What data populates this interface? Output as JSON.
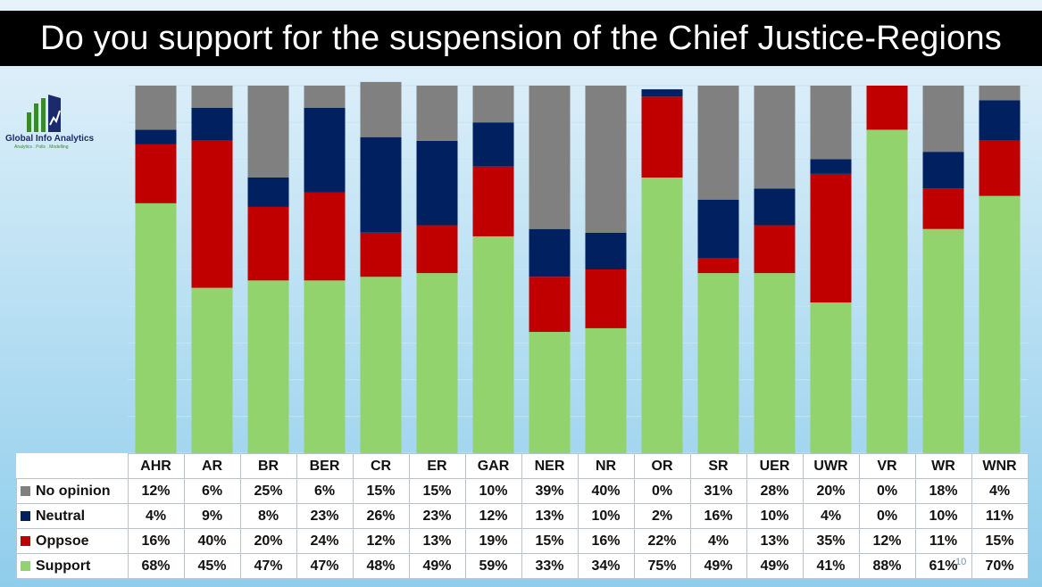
{
  "title": "Do you support for the suspension of the Chief Justice-Regions",
  "logo": {
    "name": "Global Info Analytics",
    "tagline": "Analytics . Polls . Modelling"
  },
  "page_number": "10",
  "colors": {
    "no_opinion": "#808080",
    "neutral": "#002060",
    "oppose": "#c00000",
    "support": "#92d36e"
  },
  "chart_data": {
    "type": "bar",
    "stacked": true,
    "percent": true,
    "title": "Do you support for the suspension of the Chief Justice-Regions",
    "categories": [
      "AHR",
      "AR",
      "BR",
      "BER",
      "CR",
      "ER",
      "GAR",
      "NER",
      "NR",
      "OR",
      "SR",
      "UER",
      "UWR",
      "VR",
      "WR",
      "WNR"
    ],
    "ylim": [
      0,
      100
    ],
    "series": [
      {
        "name": "Support",
        "color": "#92d36e",
        "values": [
          68,
          45,
          47,
          47,
          48,
          49,
          59,
          33,
          34,
          75,
          49,
          49,
          41,
          88,
          61,
          70
        ]
      },
      {
        "name": "Oppsoe",
        "color": "#c00000",
        "values": [
          16,
          40,
          20,
          24,
          12,
          13,
          19,
          15,
          16,
          22,
          4,
          13,
          35,
          12,
          11,
          15
        ]
      },
      {
        "name": "Neutral",
        "color": "#002060",
        "values": [
          4,
          9,
          8,
          23,
          26,
          23,
          12,
          13,
          10,
          2,
          16,
          10,
          4,
          0,
          10,
          11
        ]
      },
      {
        "name": "No opinion",
        "color": "#808080",
        "values": [
          12,
          6,
          25,
          6,
          15,
          15,
          10,
          39,
          40,
          0,
          31,
          28,
          20,
          0,
          18,
          4
        ]
      }
    ],
    "table_rows": [
      {
        "name": "No opinion",
        "color": "#808080",
        "labels": [
          "12%",
          "6%",
          "25%",
          "6%",
          "15%",
          "15%",
          "10%",
          "39%",
          "40%",
          "0%",
          "31%",
          "28%",
          "20%",
          "0%",
          "18%",
          "4%"
        ]
      },
      {
        "name": "Neutral",
        "color": "#002060",
        "labels": [
          "4%",
          "9%",
          "8%",
          "23%",
          "26%",
          "23%",
          "12%",
          "13%",
          "10%",
          "2%",
          "16%",
          "10%",
          "4%",
          "0%",
          "10%",
          "11%"
        ]
      },
      {
        "name": "Oppsoe",
        "color": "#c00000",
        "labels": [
          "16%",
          "40%",
          "20%",
          "24%",
          "12%",
          "13%",
          "19%",
          "15%",
          "16%",
          "22%",
          "4%",
          "13%",
          "35%",
          "12%",
          "11%",
          "15%"
        ]
      },
      {
        "name": "Support",
        "color": "#92d36e",
        "labels": [
          "68%",
          "45%",
          "47%",
          "47%",
          "48%",
          "49%",
          "59%",
          "33%",
          "34%",
          "75%",
          "49%",
          "49%",
          "41%",
          "88%",
          "61%",
          "70%"
        ]
      }
    ]
  }
}
